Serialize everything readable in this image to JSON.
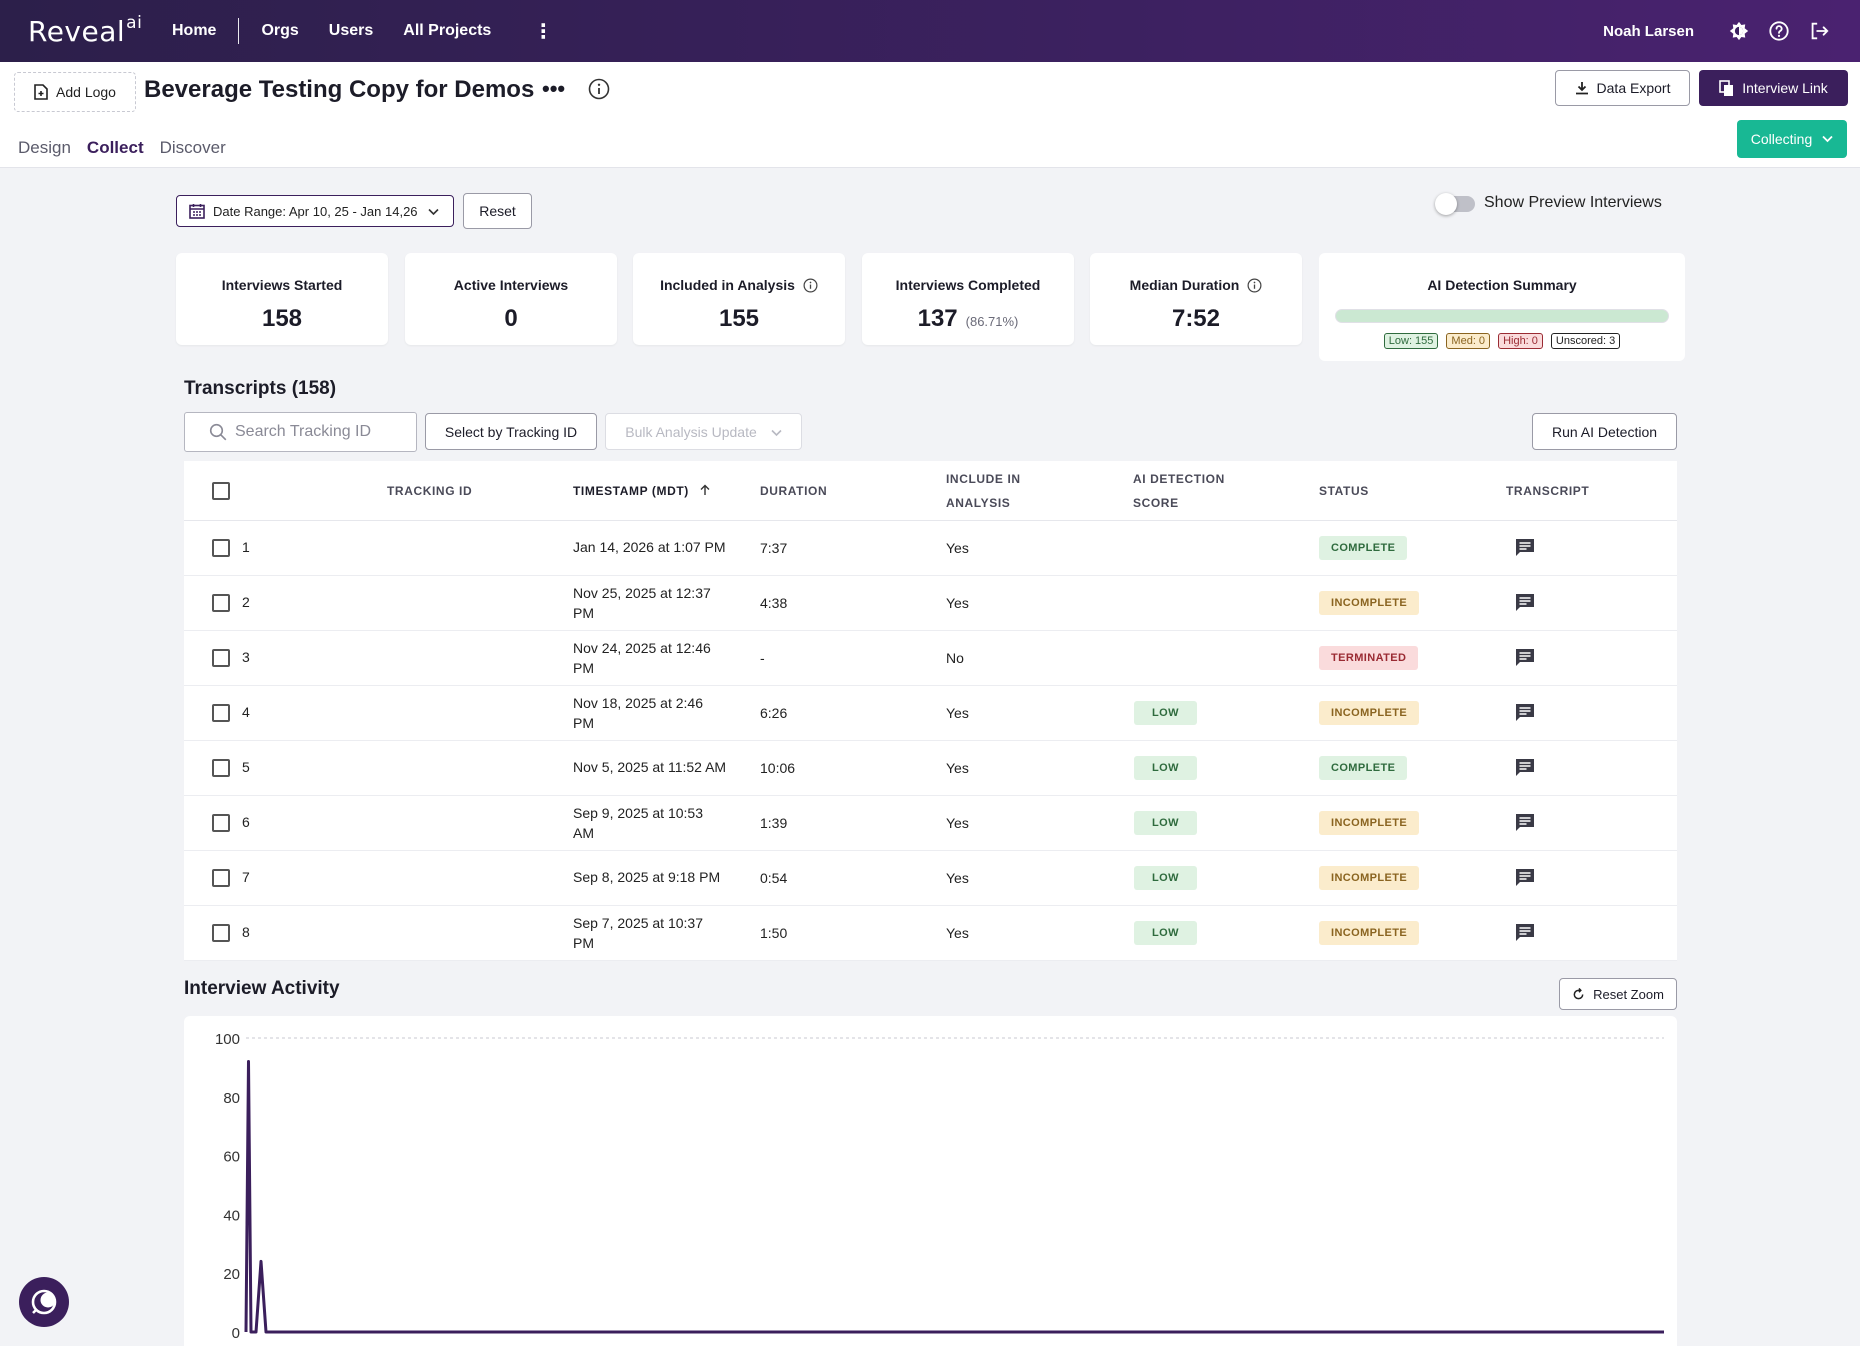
{
  "app": {
    "brand": "Reveal",
    "brand_sup": "ai"
  },
  "topnav": {
    "items": [
      "Home",
      "Orgs",
      "Users",
      "All Projects"
    ],
    "more": "⋮"
  },
  "user": {
    "name": "Noah Larsen"
  },
  "header": {
    "add_logo": "Add Logo",
    "project_title": "Beverage Testing Copy for Demos",
    "more": "•••",
    "data_export": "Data Export",
    "interview_link": "Interview Link",
    "tabs": [
      "Design",
      "Collect",
      "Discover"
    ],
    "active_tab": "Collect",
    "collecting": "Collecting"
  },
  "filters": {
    "date_range": "Date Range: Apr 10, 25 - Jan 14,26",
    "reset": "Reset",
    "show_preview": "Show Preview Interviews",
    "show_preview_on": false
  },
  "stats": {
    "started": {
      "label": "Interviews Started",
      "value": "158"
    },
    "active": {
      "label": "Active Interviews",
      "value": "0"
    },
    "included": {
      "label": "Included in Analysis",
      "value": "155"
    },
    "completed": {
      "label": "Interviews Completed",
      "value": "137",
      "pct": "(86.71%)"
    },
    "median": {
      "label": "Median Duration",
      "value": "7:52"
    },
    "ai": {
      "label": "AI Detection Summary",
      "low": "Low: 155",
      "med": "Med: 0",
      "high": "High: 0",
      "unscored": "Unscored: 3"
    }
  },
  "transcripts": {
    "title": "Transcripts (158)",
    "search_placeholder": "Search Tracking ID",
    "select_by_id": "Select by Tracking ID",
    "bulk_update": "Bulk Analysis Update",
    "run_ai": "Run AI Detection",
    "columns": {
      "tracking": "TRACKING ID",
      "timestamp": "TIMESTAMP (MDT)",
      "duration": "DURATION",
      "include_1": "INCLUDE IN",
      "include_2": "ANALYSIS",
      "ai_1": "AI DETECTION",
      "ai_2": "SCORE",
      "status": "STATUS",
      "transcript": "TRANSCRIPT"
    },
    "rows": [
      {
        "id": "1",
        "ts1": "Jan 14, 2026 at 1:07 PM",
        "ts2": "",
        "duration": "7:37",
        "include": "Yes",
        "ai": "",
        "status": "COMPLETE"
      },
      {
        "id": "2",
        "ts1": "Nov 25, 2025 at 12:37",
        "ts2": "PM",
        "duration": "4:38",
        "include": "Yes",
        "ai": "",
        "status": "INCOMPLETE"
      },
      {
        "id": "3",
        "ts1": "Nov 24, 2025 at 12:46",
        "ts2": "PM",
        "duration": "-",
        "include": "No",
        "ai": "",
        "status": "TERMINATED"
      },
      {
        "id": "4",
        "ts1": "Nov 18, 2025 at 2:46",
        "ts2": "PM",
        "duration": "6:26",
        "include": "Yes",
        "ai": "LOW",
        "status": "INCOMPLETE"
      },
      {
        "id": "5",
        "ts1": "Nov 5, 2025 at 11:52 AM",
        "ts2": "",
        "duration": "10:06",
        "include": "Yes",
        "ai": "LOW",
        "status": "COMPLETE"
      },
      {
        "id": "6",
        "ts1": "Sep 9, 2025 at 10:53",
        "ts2": "AM",
        "duration": "1:39",
        "include": "Yes",
        "ai": "LOW",
        "status": "INCOMPLETE"
      },
      {
        "id": "7",
        "ts1": "Sep 8, 2025 at 9:18 PM",
        "ts2": "",
        "duration": "0:54",
        "include": "Yes",
        "ai": "LOW",
        "status": "INCOMPLETE"
      },
      {
        "id": "8",
        "ts1": "Sep 7, 2025 at 10:37",
        "ts2": "PM",
        "duration": "1:50",
        "include": "Yes",
        "ai": "LOW",
        "status": "INCOMPLETE"
      }
    ]
  },
  "activity": {
    "title": "Interview Activity",
    "reset_zoom": "Reset Zoom"
  },
  "chart_data": {
    "type": "line",
    "ylim": [
      0,
      100
    ],
    "yticks": [
      "100",
      "80",
      "60",
      "40",
      "20",
      "0"
    ],
    "series": [
      {
        "x": [
          0,
          0.5,
          1,
          2,
          3,
          4,
          5,
          6,
          7,
          8,
          9,
          10,
          11,
          12,
          13,
          14,
          15,
          16,
          17,
          18,
          19,
          20,
          21,
          22,
          23,
          24,
          25,
          26,
          27,
          28,
          29,
          30,
          31,
          32,
          33,
          34,
          35,
          36,
          37,
          38,
          39,
          40
        ],
        "y": [
          0,
          92,
          0,
          0,
          24,
          0,
          0,
          0,
          0,
          0,
          0,
          0,
          0,
          0,
          0,
          0,
          0,
          0,
          0,
          0,
          0,
          0,
          0,
          0,
          0,
          0,
          0,
          0,
          0,
          0,
          0,
          0,
          0,
          0,
          0,
          0,
          0,
          0,
          0,
          0,
          0,
          0
        ]
      }
    ],
    "grid": "dashed-top-line",
    "color": "#3b1f5c"
  },
  "colors": {
    "primary": "#3b1f5c",
    "accent": "#18b894"
  }
}
